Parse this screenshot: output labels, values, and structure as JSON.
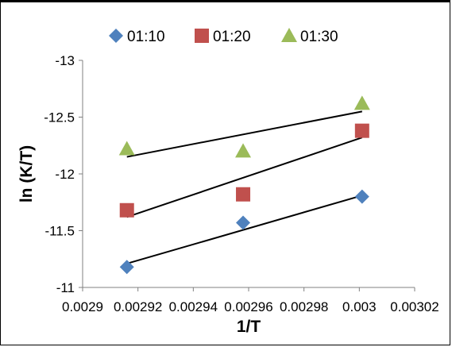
{
  "chart_data": {
    "type": "scatter",
    "xlabel": "1/T",
    "ylabel": "ln (K/T)",
    "xlim": [
      0.0029,
      0.00302
    ],
    "ylim": [
      -11,
      -13
    ],
    "y_reversed": true,
    "x_ticks": [
      0.0029,
      0.00292,
      0.00294,
      0.00296,
      0.00298,
      0.003,
      0.00302
    ],
    "x_tick_labels": [
      "0.0029",
      "0.00292",
      "0.00294",
      "0.00296",
      "0.00298",
      "0.003",
      "0.00302"
    ],
    "y_ticks": [
      -11,
      -11.5,
      -12,
      -12.5,
      -13
    ],
    "y_tick_labels": [
      "-11",
      "-11.5",
      "-12",
      "-12.5",
      "-13"
    ],
    "grid": false,
    "legend_position": "top",
    "series": [
      {
        "name": "01:10",
        "marker": "diamond",
        "color": "#4f81bd",
        "x": [
          0.002916,
          0.002958,
          0.003001
        ],
        "y": [
          -11.18,
          -11.57,
          -11.8
        ],
        "trendline": [
          [
            0.002916,
            -11.21
          ],
          [
            0.003001,
            -11.81
          ]
        ]
      },
      {
        "name": "01:20",
        "marker": "square",
        "color": "#c0504d",
        "x": [
          0.002916,
          0.002958,
          0.003001
        ],
        "y": [
          -11.68,
          -11.82,
          -12.38
        ],
        "trendline": [
          [
            0.002916,
            -11.62
          ],
          [
            0.003001,
            -12.32
          ]
        ]
      },
      {
        "name": "01:30",
        "marker": "triangle",
        "color": "#9bbb59",
        "x": [
          0.002916,
          0.002958,
          0.003001
        ],
        "y": [
          -12.22,
          -12.2,
          -12.62
        ],
        "trendline": [
          [
            0.002916,
            -12.15
          ],
          [
            0.003001,
            -12.55
          ]
        ]
      }
    ]
  }
}
